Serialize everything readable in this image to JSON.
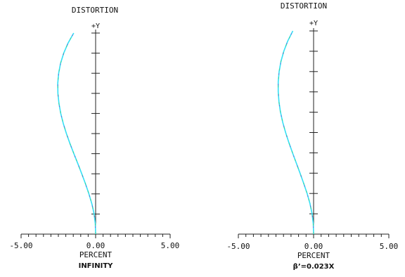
{
  "chart_data": [
    {
      "type": "line",
      "title": "DISTORTION",
      "y_axis_label": "+Y",
      "x_tick_labels": [
        "-5.00",
        "0.00",
        "5.00"
      ],
      "xlabel": "PERCENT",
      "caption": "INFINITY",
      "xlim": [
        -5,
        5
      ],
      "ylim": [
        0,
        1
      ],
      "x_minor_step": 0.5,
      "y_tick_step": 0.1,
      "series": [
        {
          "points": [
            [
              0.0,
              0.0
            ],
            [
              -0.02,
              0.05
            ],
            [
              -0.1,
              0.1
            ],
            [
              -0.25,
              0.15
            ],
            [
              -0.45,
              0.2
            ],
            [
              -0.68,
              0.25
            ],
            [
              -0.93,
              0.3
            ],
            [
              -1.19,
              0.35
            ],
            [
              -1.46,
              0.4
            ],
            [
              -1.72,
              0.45
            ],
            [
              -1.96,
              0.5
            ],
            [
              -2.17,
              0.55
            ],
            [
              -2.34,
              0.6
            ],
            [
              -2.46,
              0.65
            ],
            [
              -2.53,
              0.7
            ],
            [
              -2.54,
              0.75
            ],
            [
              -2.48,
              0.8
            ],
            [
              -2.35,
              0.85
            ],
            [
              -2.14,
              0.9
            ],
            [
              -1.85,
              0.95
            ],
            [
              -1.47,
              1.0
            ]
          ]
        }
      ],
      "colors": {
        "curve": "#35e0f5",
        "curve_tint": "#3dd17a",
        "curve_dark": "#7a3fd6",
        "axis": "#222222"
      }
    },
    {
      "type": "line",
      "title": "DISTORTION",
      "y_axis_label": "+Y",
      "x_tick_labels": [
        "-5.00",
        "0.00",
        "5.00"
      ],
      "xlabel": "PERCENT",
      "caption": "β’=0.023X",
      "xlim": [
        -5,
        5
      ],
      "ylim": [
        0,
        1
      ],
      "x_minor_step": 0.5,
      "y_tick_step": 0.1,
      "series": [
        {
          "points": [
            [
              0.0,
              0.0
            ],
            [
              -0.02,
              0.05
            ],
            [
              -0.1,
              0.1
            ],
            [
              -0.24,
              0.15
            ],
            [
              -0.43,
              0.2
            ],
            [
              -0.66,
              0.25
            ],
            [
              -0.9,
              0.3
            ],
            [
              -1.15,
              0.35
            ],
            [
              -1.4,
              0.4
            ],
            [
              -1.64,
              0.45
            ],
            [
              -1.86,
              0.5
            ],
            [
              -2.05,
              0.55
            ],
            [
              -2.2,
              0.6
            ],
            [
              -2.3,
              0.65
            ],
            [
              -2.35,
              0.7
            ],
            [
              -2.35,
              0.75
            ],
            [
              -2.29,
              0.8
            ],
            [
              -2.17,
              0.85
            ],
            [
              -1.98,
              0.9
            ],
            [
              -1.72,
              0.95
            ],
            [
              -1.38,
              1.0
            ]
          ]
        }
      ],
      "colors": {
        "curve": "#35e0f5",
        "curve_tint": "#3dd17a",
        "curve_dark": "#7a3fd6",
        "axis": "#222222"
      }
    }
  ]
}
